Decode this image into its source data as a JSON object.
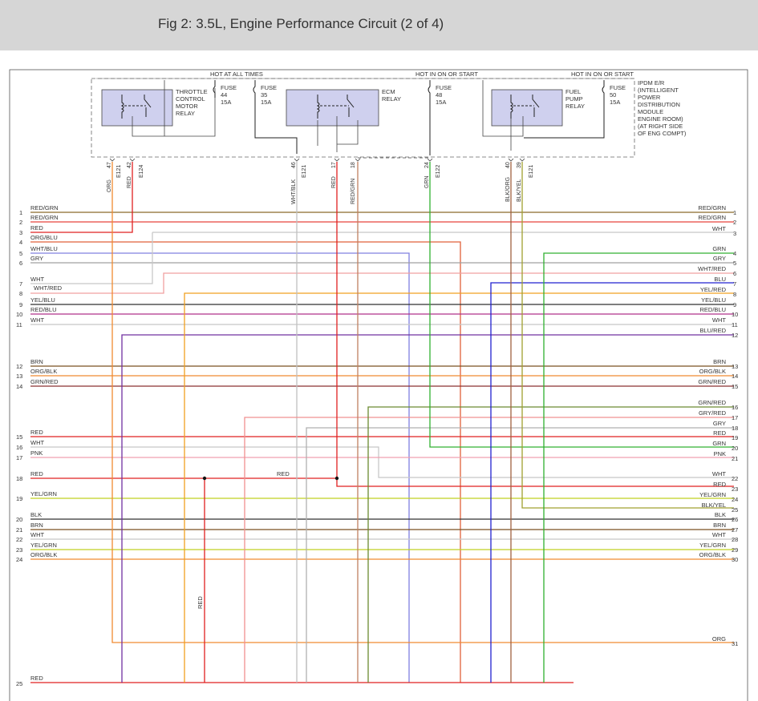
{
  "title": "Fig 2: 3.5L, Engine Performance Circuit (2 of 4)",
  "power_labels": [
    "HOT AT ALL TIMES",
    "HOT IN ON OR START",
    "HOT IN ON OR START"
  ],
  "ipdm_note": [
    "IPDM E/R",
    "(INTELLIGENT",
    "POWER",
    "DISTRIBUTION",
    "MODULE",
    "ENGINE ROOM)",
    "(AT RIGHT SIDE",
    "OF ENG COMPT)"
  ],
  "relays": [
    {
      "name": "throttle-control-motor-relay",
      "lines": [
        "THROTTLE",
        "CONTROL",
        "MOTOR",
        "RELAY"
      ]
    },
    {
      "name": "ecm-relay",
      "lines": [
        "ECM",
        "RELAY"
      ]
    },
    {
      "name": "fuel-pump-relay",
      "lines": [
        "FUEL",
        "PUMP",
        "RELAY"
      ]
    }
  ],
  "fuses": [
    {
      "lines": [
        "FUSE",
        "44",
        "15A"
      ]
    },
    {
      "lines": [
        "FUSE",
        "35",
        "15A"
      ]
    },
    {
      "lines": [
        "FUSE",
        "48",
        "15A"
      ]
    },
    {
      "lines": [
        "FUSE",
        "50",
        "15A"
      ]
    }
  ],
  "ipdm_pins": [
    {
      "color": "ORG",
      "pin": "47",
      "conn": "E121"
    },
    {
      "color": "RED",
      "pin": "42",
      "conn": "E124"
    },
    {
      "color": "WHT/BLK",
      "pin": "46",
      "conn": "E121"
    },
    {
      "color": "RED",
      "pin": "17",
      "conn": ""
    },
    {
      "color": "RED/GRN",
      "pin": "18",
      "conn": ""
    },
    {
      "color": "GRN",
      "pin": "24",
      "conn": "E122"
    },
    {
      "color": "BLK/ORG",
      "pin": "40",
      "conn": ""
    },
    {
      "color": "BLK/YEL",
      "pin": "39",
      "conn": "E121"
    }
  ],
  "left_wires": [
    {
      "num": "1",
      "label": "RED/GRN",
      "color": "#8a6a2a"
    },
    {
      "num": "2",
      "label": "RED/GRN",
      "color": "#e8453c"
    },
    {
      "num": "3",
      "label": "RED",
      "color": "#e02020"
    },
    {
      "num": "4",
      "label": "ORG/BLU",
      "color": "#e0603a"
    },
    {
      "num": "5",
      "label": "WHT/BLU",
      "color": "#8080e0"
    },
    {
      "num": "6",
      "label": "GRY",
      "color": "#a0a0a0"
    },
    {
      "num": "7",
      "label": "WHT",
      "color": "#c8c8c8"
    },
    {
      "num": "8",
      "label": "WHT/RED",
      "color": "#f0a0a0"
    },
    {
      "num": "9",
      "label": "YEL/BLU",
      "color": "#303030"
    },
    {
      "num": "10",
      "label": "RED/BLU",
      "color": "#b0308a"
    },
    {
      "num": "11",
      "label": "WHT",
      "color": "#c8c8c8"
    },
    {
      "num": "12",
      "label": "BRN",
      "color": "#7a5020"
    },
    {
      "num": "13",
      "label": "ORG/BLK",
      "color": "#f08a30"
    },
    {
      "num": "14",
      "label": "GRN/RED",
      "color": "#8a3030"
    },
    {
      "num": "15",
      "label": "RED",
      "color": "#e02020"
    },
    {
      "num": "16",
      "label": "WHT",
      "color": "#c8c8c8"
    },
    {
      "num": "17",
      "label": "PNK",
      "color": "#f0a0b0"
    },
    {
      "num": "18",
      "label": "RED",
      "color": "#e02020"
    },
    {
      "num": "19",
      "label": "YEL/GRN",
      "color": "#c0d020"
    },
    {
      "num": "20",
      "label": "BLK",
      "color": "#303030"
    },
    {
      "num": "21",
      "label": "BRN",
      "color": "#7a5020"
    },
    {
      "num": "22",
      "label": "WHT",
      "color": "#c8c8c8"
    },
    {
      "num": "23",
      "label": "YEL/GRN",
      "color": "#c0d020"
    },
    {
      "num": "24",
      "label": "ORG/BLK",
      "color": "#f08a30"
    },
    {
      "num": "25",
      "label": "RED",
      "color": "#e02020"
    }
  ],
  "right_wires": [
    {
      "num": "1",
      "label": "RED/GRN"
    },
    {
      "num": "2",
      "label": "RED/GRN"
    },
    {
      "num": "3",
      "label": "WHT"
    },
    {
      "num": "4",
      "label": "GRN"
    },
    {
      "num": "5",
      "label": "GRY"
    },
    {
      "num": "6",
      "label": "WHT/RED"
    },
    {
      "num": "7",
      "label": "BLU"
    },
    {
      "num": "8",
      "label": "YEL/RED"
    },
    {
      "num": "9",
      "label": "YEL/BLU"
    },
    {
      "num": "10",
      "label": "RED/BLU"
    },
    {
      "num": "11",
      "label": "WHT"
    },
    {
      "num": "12",
      "label": "BLU/RED"
    },
    {
      "num": "13",
      "label": "BRN"
    },
    {
      "num": "14",
      "label": "ORG/BLK"
    },
    {
      "num": "15",
      "label": "GRN/RED"
    },
    {
      "num": "16",
      "label": "GRN/RED"
    },
    {
      "num": "17",
      "label": "GRY/RED"
    },
    {
      "num": "18",
      "label": "GRY"
    },
    {
      "num": "19",
      "label": "RED"
    },
    {
      "num": "20",
      "label": "GRN"
    },
    {
      "num": "21",
      "label": "PNK"
    },
    {
      "num": "22",
      "label": "WHT"
    },
    {
      "num": "23",
      "label": "RED"
    },
    {
      "num": "24",
      "label": "YEL/GRN"
    },
    {
      "num": "25",
      "label": "BLK/YEL"
    },
    {
      "num": "26",
      "label": "BLK"
    },
    {
      "num": "27",
      "label": "BRN"
    },
    {
      "num": "28",
      "label": "WHT"
    },
    {
      "num": "29",
      "label": "YEL/GRN"
    },
    {
      "num": "30",
      "label": "ORG/BLK"
    },
    {
      "num": "31",
      "label": "ORG"
    }
  ],
  "splice_labels": {
    "mid_red": "RED",
    "vertical_red": "RED"
  }
}
